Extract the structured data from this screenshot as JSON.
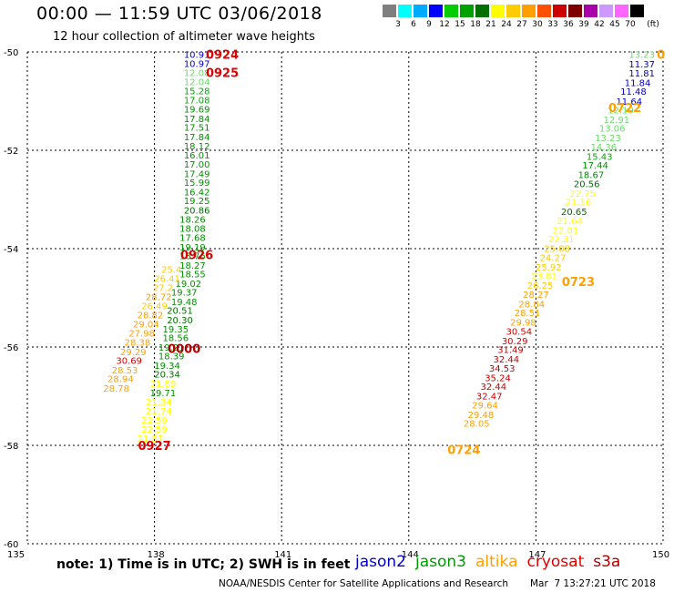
{
  "title": "00:00 — 11:59 UTC 03/06/2018",
  "subtitle": "12 hour collection of altimeter wave heights",
  "colorbar": {
    "unit": "(ft)",
    "colors": [
      "#7f7f7f",
      "#00ffff",
      "#00aaff",
      "#0000ff",
      "#00cc00",
      "#00a000",
      "#007000",
      "#ffff00",
      "#ffcc00",
      "#ffa000",
      "#ff5000",
      "#cc0000",
      "#7f0000",
      "#aa00aa",
      "#cc99ff",
      "#ff66ff",
      "#000000"
    ],
    "labels": [
      "3",
      "6",
      "9",
      "12",
      "15",
      "18",
      "21",
      "24",
      "27",
      "30",
      "33",
      "36",
      "39",
      "42",
      "45",
      "70"
    ]
  },
  "footer": {
    "note": "note: 1) Time is in UTC; 2) SWH is in feet",
    "legend": [
      {
        "name": "jason2",
        "color": "#0000cc"
      },
      {
        "name": "jason3",
        "color": "#009900"
      },
      {
        "name": "altika",
        "color": "#ffa000"
      },
      {
        "name": "cryosat",
        "color": "#dd0000"
      },
      {
        "name": "s3a",
        "color": "#aa0000"
      }
    ],
    "credit": "NOAA/NESDIS Center for Satellite Applications and Research",
    "timestamp": "Mar  7 13:27:21 UTC 2018"
  },
  "chart_data": {
    "type": "scatter",
    "xlim": [
      135,
      150
    ],
    "ylim": [
      -60,
      -50
    ],
    "xticks": [
      135,
      138,
      141,
      144,
      147,
      150
    ],
    "yticks": [
      -50,
      -52,
      -54,
      -56,
      -58,
      -60
    ],
    "grid": true,
    "time_labels": [
      {
        "text": "0924",
        "x": 139.6,
        "y": -50.05,
        "color": "#dd0000"
      },
      {
        "text": "0925",
        "x": 139.6,
        "y": -50.42,
        "color": "#dd0000"
      },
      {
        "text": "0926",
        "x": 139.0,
        "y": -54.12,
        "color": "#dd0000"
      },
      {
        "text": "0000",
        "x": 138.7,
        "y": -56.03,
        "color": "#aa0000"
      },
      {
        "text": "0927",
        "x": 138.0,
        "y": -58.0,
        "color": "#dd0000"
      },
      {
        "text": "0722",
        "x": 149.1,
        "y": -51.13,
        "color": "#ffa000"
      },
      {
        "text": "0723",
        "x": 148.0,
        "y": -54.67,
        "color": "#ffa000"
      },
      {
        "text": "0724",
        "x": 145.3,
        "y": -58.08,
        "color": "#ffa000"
      },
      {
        "text": "0",
        "x": 149.95,
        "y": -50.05,
        "color": "#ffa000"
      }
    ],
    "series": [
      {
        "name": "track-west-jason",
        "points": [
          [
            139.0,
            -50.05,
            "10.91",
            "#0000cc"
          ],
          [
            139.0,
            -50.23,
            "10.97",
            "#0000cc"
          ],
          [
            139.0,
            -50.42,
            "12.08",
            "#66dd66"
          ],
          [
            139.0,
            -50.6,
            "12.04",
            "#66dd66"
          ],
          [
            139.0,
            -50.79,
            "15.28",
            "#00aa00"
          ],
          [
            139.0,
            -50.97,
            "17.08",
            "#00aa00"
          ],
          [
            139.0,
            -51.16,
            "19.69",
            "#009000"
          ],
          [
            139.0,
            -51.35,
            "17.84",
            "#009000"
          ],
          [
            139.0,
            -51.53,
            "17.51",
            "#009000"
          ],
          [
            139.0,
            -51.72,
            "17.84",
            "#009000"
          ],
          [
            139.0,
            -51.91,
            "18.12",
            "#009000"
          ],
          [
            139.0,
            -52.09,
            "16.01",
            "#009000"
          ],
          [
            139.0,
            -52.28,
            "17.00",
            "#009000"
          ],
          [
            139.0,
            -52.47,
            "17.49",
            "#009000"
          ],
          [
            139.0,
            -52.65,
            "15.99",
            "#009000"
          ],
          [
            139.0,
            -52.84,
            "16.42",
            "#009000"
          ],
          [
            139.0,
            -53.02,
            "19.25",
            "#009000"
          ],
          [
            139.0,
            -53.21,
            "20.86",
            "#007000"
          ],
          [
            138.9,
            -53.4,
            "18.26",
            "#009000"
          ],
          [
            138.9,
            -53.58,
            "18.08",
            "#009000"
          ],
          [
            138.9,
            -53.77,
            "17.68",
            "#009000"
          ],
          [
            138.9,
            -53.96,
            "19.19",
            "#009000"
          ],
          [
            138.9,
            -54.14,
            "18.76",
            "#009000"
          ],
          [
            138.9,
            -54.33,
            "18.27",
            "#009000"
          ],
          [
            138.9,
            -54.51,
            "18.55",
            "#009000"
          ],
          [
            138.8,
            -54.7,
            "19.02",
            "#009000"
          ],
          [
            138.7,
            -54.88,
            "19.37",
            "#009000"
          ],
          [
            138.7,
            -55.07,
            "19.48",
            "#009000"
          ],
          [
            138.6,
            -55.25,
            "20.51",
            "#007000"
          ],
          [
            138.6,
            -55.44,
            "20.30",
            "#007000"
          ],
          [
            138.5,
            -55.63,
            "19.35",
            "#009000"
          ],
          [
            138.5,
            -55.81,
            "18.56",
            "#009000"
          ],
          [
            138.4,
            -56.0,
            "19.21",
            "#009000"
          ],
          [
            138.4,
            -56.18,
            "18.39",
            "#009000"
          ],
          [
            138.3,
            -56.37,
            "19.34",
            "#009000"
          ],
          [
            138.3,
            -56.55,
            "20.34",
            "#007000"
          ],
          [
            138.2,
            -56.74,
            "21.89",
            "#ffff00"
          ],
          [
            138.2,
            -56.93,
            "19.71",
            "#009000"
          ],
          [
            138.1,
            -57.11,
            "21.34",
            "#ffff00"
          ],
          [
            138.1,
            -57.3,
            "21.74",
            "#ffff00"
          ],
          [
            138.0,
            -57.48,
            "22.59",
            "#ffff00"
          ],
          [
            138.0,
            -57.67,
            "22.59",
            "#ffff00"
          ],
          [
            137.9,
            -57.85,
            "21.87",
            "#ffff00"
          ]
        ]
      },
      {
        "name": "track-west-altika",
        "points": [
          [
            138.4,
            -54.42,
            "25.4",
            "#ffcc00"
          ],
          [
            138.3,
            -54.6,
            "26.41",
            "#ffcc00"
          ],
          [
            138.2,
            -54.79,
            "27.2",
            "#ffcc00"
          ],
          [
            138.1,
            -54.97,
            "28.72",
            "#ffa000"
          ],
          [
            138.0,
            -55.16,
            "26.49",
            "#ffcc00"
          ],
          [
            137.9,
            -55.34,
            "28.82",
            "#ffa000"
          ],
          [
            137.8,
            -55.53,
            "29.04",
            "#ffa000"
          ],
          [
            137.7,
            -55.71,
            "27.98",
            "#ffa000"
          ],
          [
            137.6,
            -55.9,
            "28.38",
            "#ffa000"
          ],
          [
            137.5,
            -56.09,
            "29.29",
            "#ffa000"
          ],
          [
            137.4,
            -56.27,
            "30.69",
            "#cc0000"
          ],
          [
            137.3,
            -56.46,
            "28.53",
            "#ffa000"
          ],
          [
            137.2,
            -56.64,
            "28.94",
            "#ffa000"
          ],
          [
            137.1,
            -56.83,
            "28.78",
            "#ffa000"
          ]
        ]
      },
      {
        "name": "track-east-jason",
        "points": [
          [
            149.5,
            -50.05,
            "13.23",
            "#66dd66"
          ],
          [
            149.5,
            -50.24,
            "11.37",
            "#0000cc"
          ],
          [
            149.5,
            -50.43,
            "11.81",
            "#0000cc"
          ],
          [
            149.4,
            -50.62,
            "11.84",
            "#0000cc"
          ],
          [
            149.3,
            -50.8,
            "11.48",
            "#0000cc"
          ],
          [
            149.2,
            -51.0,
            "11.64",
            "#0000cc"
          ],
          [
            149.0,
            -51.18,
            "12.10",
            "#66dd66"
          ],
          [
            148.9,
            -51.37,
            "12.91",
            "#66dd66"
          ],
          [
            148.8,
            -51.55,
            "13.06",
            "#66dd66"
          ],
          [
            148.7,
            -51.74,
            "13.23",
            "#66dd66"
          ],
          [
            148.6,
            -51.93,
            "14.36",
            "#66dd66"
          ],
          [
            148.5,
            -52.12,
            "15.43",
            "#00aa00"
          ],
          [
            148.4,
            -52.3,
            "17.44",
            "#009000"
          ],
          [
            148.3,
            -52.49,
            "18.67",
            "#009000"
          ],
          [
            148.2,
            -52.68,
            "20.56",
            "#007000"
          ],
          [
            148.1,
            -52.87,
            "22.75",
            "#ffff00"
          ],
          [
            148.0,
            -53.05,
            "21.16",
            "#ffff00"
          ],
          [
            147.9,
            -53.24,
            "20.65",
            "#007000"
          ],
          [
            147.8,
            -53.43,
            "21.64",
            "#ffff00"
          ],
          [
            147.7,
            -53.62,
            "22.01",
            "#ffff00"
          ],
          [
            147.6,
            -53.8,
            "22.31",
            "#ffff00"
          ],
          [
            147.5,
            -53.99,
            "25.08",
            "#ffcc00"
          ],
          [
            147.4,
            -54.18,
            "24.27",
            "#ffcc00"
          ],
          [
            147.3,
            -54.37,
            "25.92",
            "#ffcc00"
          ],
          [
            147.2,
            -54.55,
            "23.81",
            "#ffff00"
          ],
          [
            147.1,
            -54.74,
            "26.25",
            "#ffcc00"
          ],
          [
            147.0,
            -54.93,
            "28.27",
            "#ffa000"
          ],
          [
            146.9,
            -55.12,
            "28.84",
            "#ffa000"
          ],
          [
            146.8,
            -55.3,
            "28.51",
            "#ffa000"
          ],
          [
            146.7,
            -55.49,
            "29.98",
            "#ffa000"
          ],
          [
            146.6,
            -55.68,
            "30.54",
            "#cc0000"
          ],
          [
            146.5,
            -55.87,
            "30.29",
            "#cc0000"
          ],
          [
            146.4,
            -56.05,
            "31.49",
            "#cc0000"
          ],
          [
            146.3,
            -56.24,
            "32.44",
            "#cc0000"
          ],
          [
            146.2,
            -56.43,
            "34.53",
            "#cc0000"
          ],
          [
            146.1,
            -56.62,
            "35.24",
            "#cc0000"
          ],
          [
            146.0,
            -56.8,
            "32.44",
            "#cc0000"
          ],
          [
            145.9,
            -56.99,
            "32.47",
            "#cc0000"
          ],
          [
            145.8,
            -57.18,
            "29.64",
            "#ffa000"
          ],
          [
            145.7,
            -57.37,
            "29.48",
            "#ffa000"
          ],
          [
            145.6,
            -57.55,
            "28.05",
            "#ffa000"
          ]
        ]
      }
    ]
  }
}
